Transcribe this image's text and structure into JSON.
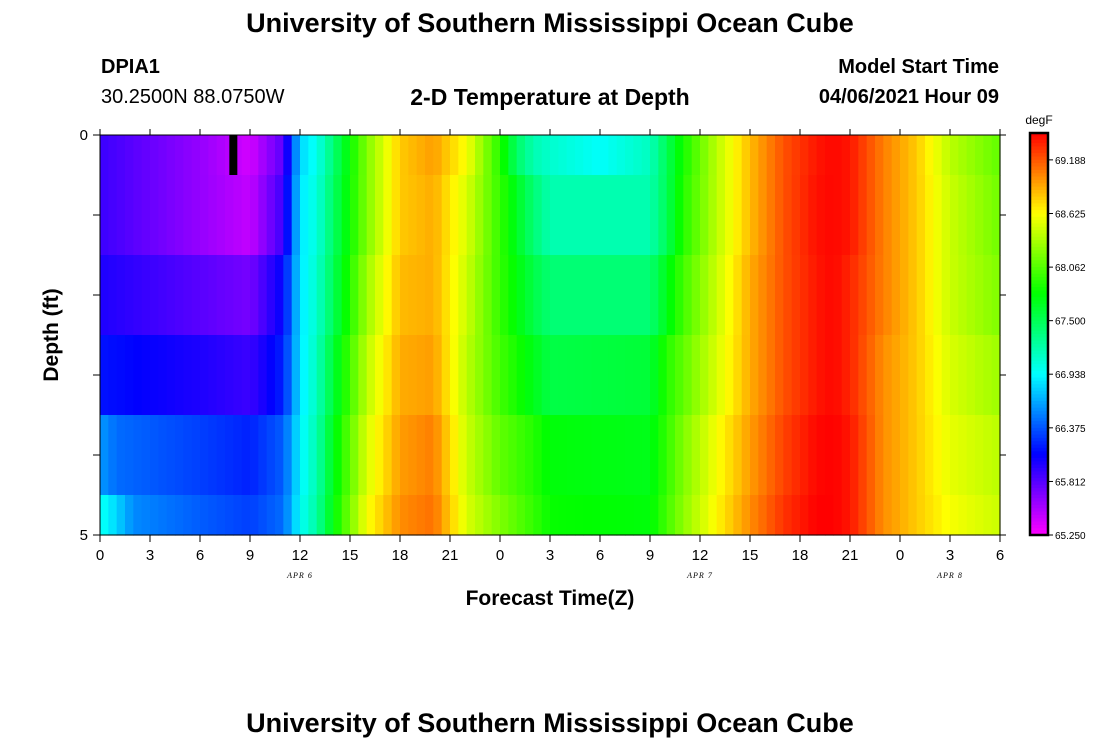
{
  "page": {
    "title_top": "University of Southern Mississippi Ocean Cube",
    "title_bottom": "University of Southern Mississippi Ocean Cube",
    "station": "DPIA1",
    "location": "30.2500N  88.0750W",
    "plot_title": "2-D Temperature at Depth",
    "model_start_label": "Model Start Time",
    "model_start_value": "04/06/2021 Hour 09"
  },
  "chart_data": {
    "type": "heatmap",
    "title": "2-D Temperature at Depth",
    "xlabel": "Forecast Time(Z)",
    "ylabel": "Depth (ft)",
    "x_hours": [
      0,
      54
    ],
    "x_ticks": [
      "0",
      "3",
      "6",
      "9",
      "12",
      "15",
      "18",
      "21",
      "0",
      "3",
      "6",
      "9",
      "12",
      "15",
      "18",
      "21",
      "0",
      "3",
      "6"
    ],
    "x_tick_hours": [
      0,
      3,
      6,
      9,
      12,
      15,
      18,
      21,
      24,
      27,
      30,
      33,
      36,
      39,
      42,
      45,
      48,
      51,
      54
    ],
    "date_labels": [
      {
        "text": "APR 6",
        "hour": 12
      },
      {
        "text": "APR 7",
        "hour": 36
      },
      {
        "text": "APR 8",
        "hour": 51
      }
    ],
    "y_range": [
      0,
      5
    ],
    "y_tick_labels": [
      "0",
      "5"
    ],
    "colorbar": {
      "unit": "degF",
      "range": [
        65.25,
        69.47
      ],
      "tick_labels": [
        "69.188",
        "68.625",
        "68.062",
        "67.500",
        "66.938",
        "66.375",
        "65.812",
        "65.250"
      ],
      "tick_values": [
        69.188,
        68.625,
        68.062,
        67.5,
        66.938,
        66.375,
        65.812,
        65.25
      ]
    },
    "marker_hour": 8,
    "depth_layers": [
      {
        "depth_ft": [
          0.0,
          0.5
        ],
        "keys": [
          [
            0,
            65.9
          ],
          [
            6,
            65.6
          ],
          [
            9,
            65.4
          ],
          [
            11,
            65.8
          ],
          [
            12,
            66.8
          ],
          [
            13,
            67.0
          ],
          [
            14,
            67.4
          ],
          [
            16,
            68.2
          ],
          [
            18,
            68.8
          ],
          [
            20,
            68.95
          ],
          [
            22,
            68.6
          ],
          [
            24,
            67.9
          ],
          [
            25,
            67.45
          ],
          [
            26,
            67.2
          ],
          [
            27,
            67.1
          ],
          [
            30,
            66.95
          ],
          [
            33,
            67.15
          ],
          [
            34,
            67.5
          ],
          [
            35,
            67.85
          ],
          [
            37,
            68.4
          ],
          [
            39,
            68.85
          ],
          [
            41,
            69.2
          ],
          [
            43,
            69.4
          ],
          [
            44,
            69.45
          ],
          [
            45,
            69.4
          ],
          [
            47,
            69.05
          ],
          [
            49,
            68.8
          ],
          [
            51,
            68.4
          ],
          [
            54,
            68.1
          ]
        ]
      },
      {
        "depth_ft": [
          0.5,
          1.5
        ],
        "keys": [
          [
            0,
            65.9
          ],
          [
            6,
            65.6
          ],
          [
            9,
            65.45
          ],
          [
            11,
            65.9
          ],
          [
            12,
            66.85
          ],
          [
            13,
            67.05
          ],
          [
            14,
            67.45
          ],
          [
            16,
            68.2
          ],
          [
            18,
            68.8
          ],
          [
            20,
            68.9
          ],
          [
            22,
            68.5
          ],
          [
            24,
            67.95
          ],
          [
            26,
            67.4
          ],
          [
            27,
            67.2
          ],
          [
            33,
            67.2
          ],
          [
            34,
            67.5
          ],
          [
            35,
            67.9
          ],
          [
            37,
            68.4
          ],
          [
            39,
            68.85
          ],
          [
            41,
            69.2
          ],
          [
            43,
            69.42
          ],
          [
            44,
            69.45
          ],
          [
            45,
            69.4
          ],
          [
            47,
            69.05
          ],
          [
            49,
            68.8
          ],
          [
            51,
            68.45
          ],
          [
            54,
            68.15
          ]
        ]
      },
      {
        "depth_ft": [
          1.5,
          2.5
        ],
        "keys": [
          [
            0,
            66.0
          ],
          [
            6,
            65.8
          ],
          [
            9,
            65.7
          ],
          [
            11,
            66.1
          ],
          [
            12,
            66.85
          ],
          [
            13,
            67.1
          ],
          [
            14,
            67.5
          ],
          [
            16,
            68.3
          ],
          [
            18,
            68.85
          ],
          [
            20,
            68.9
          ],
          [
            22,
            68.45
          ],
          [
            24,
            67.95
          ],
          [
            26,
            67.55
          ],
          [
            27,
            67.4
          ],
          [
            33,
            67.4
          ],
          [
            34,
            67.7
          ],
          [
            35,
            68.0
          ],
          [
            37,
            68.45
          ],
          [
            39,
            68.9
          ],
          [
            41,
            69.2
          ],
          [
            43,
            69.4
          ],
          [
            44,
            69.45
          ],
          [
            45,
            69.35
          ],
          [
            47,
            69.05
          ],
          [
            49,
            68.8
          ],
          [
            51,
            68.45
          ],
          [
            54,
            68.2
          ]
        ]
      },
      {
        "depth_ft": [
          2.5,
          3.5
        ],
        "keys": [
          [
            0,
            66.15
          ],
          [
            6,
            66.0
          ],
          [
            9,
            65.9
          ],
          [
            11,
            66.2
          ],
          [
            12,
            66.85
          ],
          [
            13,
            67.15
          ],
          [
            14,
            67.6
          ],
          [
            16,
            68.4
          ],
          [
            18,
            68.9
          ],
          [
            20,
            68.95
          ],
          [
            22,
            68.4
          ],
          [
            24,
            68.0
          ],
          [
            26,
            67.7
          ],
          [
            27,
            67.55
          ],
          [
            33,
            67.6
          ],
          [
            34,
            67.9
          ],
          [
            35,
            68.1
          ],
          [
            37,
            68.5
          ],
          [
            39,
            68.9
          ],
          [
            41,
            69.2
          ],
          [
            43,
            69.4
          ],
          [
            44,
            69.45
          ],
          [
            45,
            69.35
          ],
          [
            47,
            69.0
          ],
          [
            49,
            68.8
          ],
          [
            51,
            68.5
          ],
          [
            54,
            68.3
          ]
        ]
      },
      {
        "depth_ft": [
          3.5,
          4.5
        ],
        "keys": [
          [
            0,
            66.6
          ],
          [
            1,
            66.45
          ],
          [
            6,
            66.3
          ],
          [
            9,
            66.2
          ],
          [
            11,
            66.4
          ],
          [
            12,
            66.9
          ],
          [
            13,
            67.2
          ],
          [
            14,
            67.7
          ],
          [
            16,
            68.5
          ],
          [
            18,
            68.95
          ],
          [
            20,
            69.05
          ],
          [
            22,
            68.45
          ],
          [
            24,
            68.1
          ],
          [
            26,
            67.9
          ],
          [
            27,
            67.75
          ],
          [
            33,
            67.7
          ],
          [
            34,
            67.95
          ],
          [
            35,
            68.2
          ],
          [
            37,
            68.6
          ],
          [
            39,
            68.95
          ],
          [
            41,
            69.25
          ],
          [
            43,
            69.45
          ],
          [
            44,
            69.47
          ],
          [
            45,
            69.4
          ],
          [
            47,
            69.0
          ],
          [
            49,
            68.8
          ],
          [
            51,
            68.55
          ],
          [
            54,
            68.4
          ]
        ]
      },
      {
        "depth_ft": [
          4.5,
          5.0
        ],
        "keys": [
          [
            0,
            67.0
          ],
          [
            1,
            66.8
          ],
          [
            2,
            66.55
          ],
          [
            6,
            66.4
          ],
          [
            9,
            66.3
          ],
          [
            11,
            66.45
          ],
          [
            12,
            66.95
          ],
          [
            13,
            67.25
          ],
          [
            14,
            67.75
          ],
          [
            16,
            68.6
          ],
          [
            18,
            69.0
          ],
          [
            20,
            69.1
          ],
          [
            22,
            68.5
          ],
          [
            24,
            68.2
          ],
          [
            26,
            67.95
          ],
          [
            27,
            67.8
          ],
          [
            33,
            67.75
          ],
          [
            34,
            68.0
          ],
          [
            35,
            68.25
          ],
          [
            37,
            68.65
          ],
          [
            39,
            69.0
          ],
          [
            41,
            69.3
          ],
          [
            43,
            69.47
          ],
          [
            44,
            69.47
          ],
          [
            45,
            69.4
          ],
          [
            47,
            69.0
          ],
          [
            49,
            68.8
          ],
          [
            51,
            68.6
          ],
          [
            54,
            68.45
          ]
        ]
      }
    ]
  }
}
